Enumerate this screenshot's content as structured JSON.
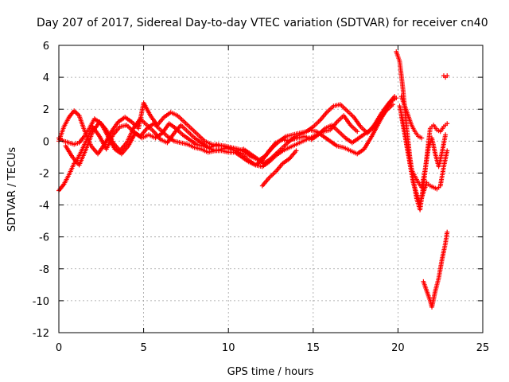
{
  "chart_data": {
    "type": "scatter",
    "title": "Day 207 of 2017, Sidereal Day-to-day VTEC variation (SDTVAR) for receiver cn40",
    "xlabel": "GPS time / hours",
    "ylabel": "SDTVAR / TECUs",
    "xlim": [
      0,
      25
    ],
    "ylim": [
      -12,
      6
    ],
    "xticks": [
      0,
      5,
      10,
      15,
      20,
      25
    ],
    "yticks": [
      -12,
      -10,
      -8,
      -6,
      -4,
      -2,
      0,
      2,
      4,
      6
    ],
    "xtick_labels": [
      "0",
      "5",
      "10",
      "15",
      "20",
      "25"
    ],
    "ytick_labels": [
      "-12",
      "-10",
      "-8",
      "-6",
      "-4",
      "-2",
      "0",
      "2",
      "4",
      "6"
    ],
    "grid": true,
    "legend": "none",
    "marker": "plus",
    "color": "#ff0000",
    "series": [
      {
        "x": [
          0,
          0.3,
          0.6,
          0.9,
          1.1,
          1.3,
          1.6,
          2.0,
          2.4,
          2.8,
          3.2,
          3.6,
          4.0,
          4.4,
          4.8,
          5.2,
          5.6,
          6.0,
          6.4,
          6.8,
          7.2,
          7.6,
          8.0,
          8.4,
          8.8,
          9.2,
          9.6,
          10.0,
          10.4,
          10.8,
          11.2,
          11.6,
          12.0,
          12.4,
          12.8,
          13.2,
          13.6,
          14.0,
          14.4,
          14.8,
          15.2,
          15.6,
          16.0,
          16.4,
          16.8,
          17.2,
          17.6,
          18.0,
          18.4,
          18.8,
          19.2,
          19.6,
          19.9
        ],
        "y": [
          -3.1,
          -2.7,
          -2.1,
          -1.4,
          -1.1,
          -0.7,
          0.0,
          0.9,
          0.3,
          -0.5,
          0.4,
          0.9,
          1.0,
          0.6,
          0.3,
          0.8,
          1.1,
          0.7,
          0.3,
          0.0,
          -0.1,
          -0.2,
          -0.4,
          -0.5,
          -0.7,
          -0.6,
          -0.6,
          -0.7,
          -0.7,
          -1.0,
          -1.3,
          -1.5,
          -1.2,
          -0.6,
          -0.1,
          0.1,
          0.0,
          0.3,
          0.5,
          0.7,
          0.6,
          0.3,
          0.0,
          -0.3,
          -0.4,
          -0.6,
          -0.8,
          -0.5,
          0.2,
          1.0,
          1.8,
          2.5,
          2.7
        ]
      },
      {
        "x": [
          0,
          0.3,
          0.6,
          0.9,
          1.2,
          1.5,
          1.9,
          2.3,
          2.7,
          3.1,
          3.5,
          3.9,
          4.3,
          4.7,
          5.0,
          5.4,
          5.8,
          6.2,
          6.6,
          7.0,
          7.4,
          7.8,
          8.2,
          8.6,
          9.0,
          9.4,
          9.8,
          10.2,
          10.6,
          11.0,
          11.4,
          11.8,
          12.2,
          12.6,
          13.0,
          13.4,
          13.8,
          14.2,
          14.6,
          15.0,
          15.4,
          15.8,
          16.2,
          16.6,
          17.0,
          17.4,
          17.8,
          18.2,
          18.6,
          19.0,
          19.4,
          19.8
        ],
        "y": [
          0.0,
          0.9,
          1.5,
          1.9,
          1.6,
          0.7,
          -0.3,
          -0.8,
          -0.2,
          0.6,
          1.2,
          1.5,
          1.2,
          0.8,
          2.4,
          1.6,
          1.0,
          1.5,
          1.8,
          1.6,
          1.2,
          0.8,
          0.4,
          0.0,
          -0.2,
          -0.3,
          -0.3,
          -0.4,
          -0.5,
          -0.7,
          -1.0,
          -1.2,
          -0.9,
          -0.4,
          0.0,
          0.3,
          0.4,
          0.5,
          0.6,
          0.9,
          1.3,
          1.8,
          2.2,
          2.3,
          1.9,
          1.5,
          0.9,
          0.5,
          1.0,
          1.7,
          2.3,
          2.8
        ]
      },
      {
        "x": [
          0,
          0.3,
          0.6,
          0.9,
          1.2,
          1.5,
          1.8,
          2.1,
          2.5,
          2.9,
          3.3,
          3.7,
          4.1,
          4.5,
          4.9,
          5.3,
          5.7,
          6.1,
          6.5,
          6.9,
          7.3,
          7.7,
          8.1,
          8.5,
          8.9,
          9.3,
          9.7,
          10.1,
          10.5,
          10.9,
          11.3,
          11.7,
          12.1,
          12.5,
          12.9,
          13.3,
          13.7,
          14.1,
          14.5,
          14.9,
          15.3,
          15.7,
          16.1,
          16.5,
          16.9,
          17.3,
          17.7,
          18.1,
          18.5,
          18.9,
          19.3,
          19.7
        ],
        "y": [
          0.2,
          0.0,
          -0.1,
          -0.2,
          -0.1,
          0.3,
          0.8,
          1.4,
          1.1,
          0.3,
          -0.5,
          -0.8,
          -0.3,
          0.5,
          0.2,
          0.4,
          0.2,
          0.5,
          1.1,
          0.8,
          0.4,
          0.1,
          -0.2,
          -0.3,
          -0.4,
          -0.2,
          -0.3,
          -0.5,
          -0.6,
          -0.5,
          -0.8,
          -1.1,
          -1.4,
          -1.1,
          -0.7,
          -0.3,
          0.1,
          0.2,
          0.3,
          0.1,
          0.4,
          0.8,
          1.0,
          0.6,
          0.2,
          -0.1,
          0.2,
          0.5,
          0.8,
          1.3,
          1.9,
          2.3
        ]
      },
      {
        "x": [
          0.4,
          0.8,
          1.2,
          1.6,
          2.0,
          2.4,
          2.8,
          3.2,
          3.6,
          4.0,
          4.4,
          4.8,
          5.2,
          5.6,
          6.0,
          6.4,
          6.8,
          7.2,
          7.6,
          8.0,
          8.4,
          8.8,
          9.2,
          9.6,
          10.0,
          10.4,
          10.8,
          11.2,
          11.6,
          12.0,
          12.4,
          12.8,
          13.2,
          13.6,
          14.0,
          14.4,
          14.8,
          15.2,
          15.6,
          16.0,
          16.4,
          16.8,
          17.2,
          17.6
        ],
        "y": [
          -0.3,
          -1.0,
          -1.5,
          -0.5,
          0.6,
          1.2,
          0.7,
          -0.1,
          -0.6,
          -0.1,
          0.8,
          1.4,
          1.0,
          0.6,
          0.1,
          -0.1,
          0.5,
          1.0,
          0.6,
          0.2,
          -0.1,
          -0.4,
          -0.6,
          -0.5,
          -0.4,
          -0.6,
          -0.8,
          -1.2,
          -1.5,
          -1.6,
          -1.3,
          -0.9,
          -0.6,
          -0.4,
          -0.2,
          0.0,
          0.2,
          0.4,
          0.6,
          0.7,
          1.2,
          1.6,
          1.0,
          0.6
        ]
      },
      {
        "x": [
          12.0,
          12.4,
          12.8,
          13.2,
          13.6,
          14.0
        ],
        "y": [
          -2.8,
          -2.3,
          -1.9,
          -1.4,
          -1.1,
          -0.6
        ]
      },
      {
        "x": [
          19.9,
          20.1,
          20.3,
          20.5,
          20.7,
          20.9,
          21.1,
          21.3,
          21.5,
          21.7,
          21.9,
          22.1,
          22.3,
          22.5,
          22.7,
          22.9
        ],
        "y": [
          5.6,
          5.0,
          3.2,
          1.0,
          -1.0,
          -2.4,
          -3.6,
          -4.3,
          -2.8,
          -1.0,
          0.8,
          1.0,
          0.7,
          0.6,
          0.9,
          1.1
        ]
      },
      {
        "x": [
          20.1,
          20.3,
          20.5,
          20.7,
          20.9,
          21.1,
          21.3,
          21.5,
          21.7,
          21.9,
          22.1,
          22.3,
          22.5,
          22.7,
          22.9
        ],
        "y": [
          2.2,
          1.2,
          0.0,
          -1.4,
          -2.6,
          -3.3,
          -3.9,
          -3.2,
          -2.6,
          -2.8,
          -2.9,
          -3.0,
          -2.8,
          -1.6,
          -0.6
        ]
      },
      {
        "x": [
          20.2,
          20.4,
          20.6,
          20.8,
          21.0,
          21.2,
          21.4,
          21.6,
          21.8,
          22.0,
          22.2,
          22.4,
          22.6,
          22.8
        ],
        "y": [
          1.6,
          0.4,
          -0.8,
          -1.8,
          -2.2,
          -2.6,
          -2.9,
          -1.8,
          -0.4,
          0.2,
          -0.8,
          -1.6,
          -0.7,
          0.4
        ]
      },
      {
        "x": [
          20.2,
          20.4,
          20.6,
          20.8,
          21.0,
          21.2,
          21.4
        ],
        "y": [
          2.8,
          2.2,
          1.6,
          1.0,
          0.6,
          0.3,
          0.2
        ]
      },
      {
        "x": [
          21.5,
          21.7,
          21.9,
          22.0,
          22.2,
          22.4,
          22.6,
          22.8,
          22.9
        ],
        "y": [
          -8.8,
          -9.4,
          -10.0,
          -10.4,
          -9.4,
          -8.6,
          -7.4,
          -6.4,
          -5.7
        ]
      },
      {
        "x": [
          22.7,
          22.8,
          22.9
        ],
        "y": [
          4.1,
          4.0,
          4.1
        ]
      }
    ]
  }
}
